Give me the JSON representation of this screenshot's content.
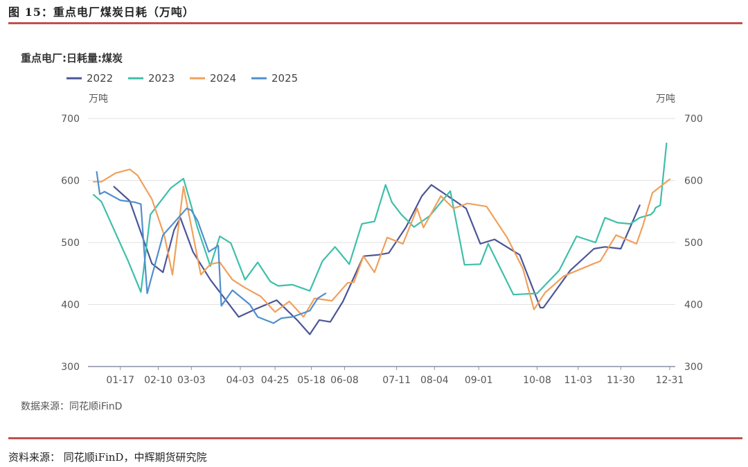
{
  "figure": {
    "title": "图 15：重点电厂煤炭日耗（万吨）",
    "source": "资料来源： 同花顺iFinD，中辉期货研究院"
  },
  "chart_data": {
    "type": "line",
    "title": "重点电厂:日耗量:煤炭",
    "y_unit_left": "万吨",
    "y_unit_right": "万吨",
    "ylim": [
      300,
      700
    ],
    "y_ticks": [
      300,
      400,
      500,
      600,
      700
    ],
    "x_range_days": [
      0,
      365
    ],
    "x_ticks": [
      {
        "label": "01-17",
        "day": 17
      },
      {
        "label": "02-10",
        "day": 41
      },
      {
        "label": "03-03",
        "day": 62
      },
      {
        "label": "04-03",
        "day": 93
      },
      {
        "label": "04-25",
        "day": 115
      },
      {
        "label": "05-18",
        "day": 138
      },
      {
        "label": "06-08",
        "day": 159
      },
      {
        "label": "07-11",
        "day": 192
      },
      {
        "label": "08-04",
        "day": 216
      },
      {
        "label": "09-01",
        "day": 244
      },
      {
        "label": "10-08",
        "day": 281
      },
      {
        "label": "11-03",
        "day": 307
      },
      {
        "label": "11-30",
        "day": 334
      },
      {
        "label": "12-31",
        "day": 365
      }
    ],
    "grid": "horizontal",
    "legend_position": "top-left",
    "series": [
      {
        "name": "2022",
        "color": "#4b5597",
        "x": [
          13,
          23,
          37,
          44,
          51,
          55,
          63,
          74,
          92,
          103,
          116,
          129,
          137,
          143,
          150,
          158,
          171,
          180,
          187,
          198,
          208,
          214,
          236,
          245,
          254,
          270,
          283,
          285,
          302,
          317,
          324,
          334,
          346
        ],
        "y": [
          590,
          567,
          466,
          452,
          520,
          540,
          485,
          440,
          380,
          393,
          407,
          375,
          352,
          375,
          372,
          405,
          478,
          480,
          483,
          525,
          575,
          593,
          555,
          498,
          505,
          480,
          395,
          395,
          455,
          490,
          493,
          490,
          560
        ]
      },
      {
        "name": "2023",
        "color": "#3dbfa9",
        "x": [
          0,
          5,
          22,
          30,
          36,
          49,
          57,
          66,
          74,
          80,
          87,
          96,
          104,
          112,
          117,
          126,
          137,
          145,
          153,
          162,
          170,
          178,
          185,
          189,
          195,
          203,
          213,
          226,
          235,
          245,
          250,
          266,
          281,
          295,
          306,
          318,
          324,
          332,
          340,
          346,
          353,
          355,
          356,
          359,
          363
        ],
        "y": [
          577,
          566,
          470,
          420,
          545,
          588,
          603,
          523,
          462,
          510,
          499,
          440,
          468,
          437,
          430,
          432,
          422,
          470,
          493,
          465,
          530,
          534,
          593,
          565,
          545,
          525,
          543,
          583,
          464,
          465,
          498,
          416,
          418,
          455,
          510,
          500,
          540,
          532,
          530,
          540,
          545,
          550,
          556,
          560,
          660
        ]
      },
      {
        "name": "2024",
        "color": "#f0a05a",
        "x": [
          0,
          5,
          14,
          23,
          28,
          37,
          45,
          50,
          57,
          68,
          74,
          80,
          88,
          96,
          106,
          115,
          124,
          133,
          140,
          151,
          161,
          165,
          171,
          178,
          186,
          196,
          205,
          209,
          220,
          228,
          237,
          249,
          262,
          272,
          279,
          286,
          298,
          316,
          321,
          331,
          344,
          348,
          354,
          359,
          365
        ],
        "y": [
          598,
          598,
          612,
          618,
          608,
          570,
          510,
          448,
          590,
          448,
          465,
          468,
          440,
          427,
          413,
          388,
          405,
          380,
          410,
          406,
          435,
          436,
          478,
          452,
          508,
          498,
          555,
          524,
          575,
          555,
          563,
          558,
          508,
          458,
          392,
          419,
          446,
          465,
          470,
          512,
          498,
          527,
          580,
          590,
          602
        ]
      },
      {
        "name": "2025",
        "color": "#4f8fcd",
        "x": [
          2,
          4,
          7,
          17,
          26,
          30,
          34,
          44,
          59,
          62,
          66,
          73,
          79,
          81,
          88,
          99,
          104,
          114,
          119,
          126,
          137,
          142,
          147
        ],
        "y": [
          614,
          578,
          582,
          568,
          565,
          562,
          418,
          512,
          555,
          552,
          535,
          485,
          495,
          398,
          423,
          400,
          380,
          370,
          378,
          380,
          390,
          410,
          418
        ]
      }
    ]
  },
  "chart_note": "数据来源：同花顺iFinD"
}
